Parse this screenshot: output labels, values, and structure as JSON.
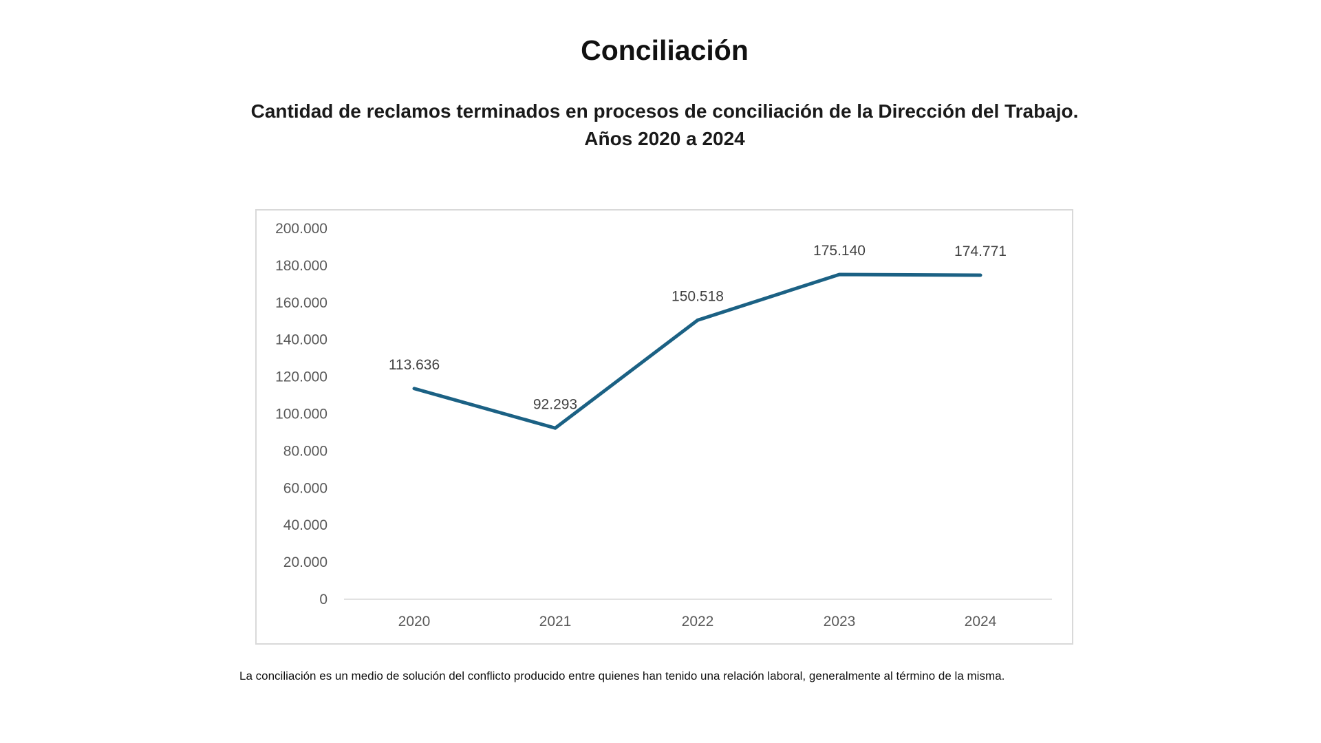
{
  "title": "Conciliación",
  "subtitle_line1": "Cantidad de reclamos terminados en procesos de conciliación de la Dirección del Trabajo.",
  "subtitle_line2": "Años 2020 a 2024",
  "footnote": "La conciliación es un medio de solución del conflicto producido entre quienes han tenido una relación laboral,  generalmente al término de la misma.",
  "chart_data": {
    "type": "line",
    "categories": [
      "2020",
      "2021",
      "2022",
      "2023",
      "2024"
    ],
    "values": [
      113636,
      92293,
      150518,
      175140,
      174771
    ],
    "data_labels": [
      "113.636",
      "92.293",
      "150.518",
      "175.140",
      "174.771"
    ],
    "ylim": [
      0,
      200000
    ],
    "yticks": [
      0,
      20000,
      40000,
      60000,
      80000,
      100000,
      120000,
      140000,
      160000,
      180000,
      200000
    ],
    "ytick_labels": [
      "0",
      "20.000",
      "40.000",
      "60.000",
      "80.000",
      "100.000",
      "120.000",
      "140.000",
      "160.000",
      "180.000",
      "200.000"
    ],
    "grid": false,
    "legend": "none",
    "line_color": "#1b6184"
  }
}
